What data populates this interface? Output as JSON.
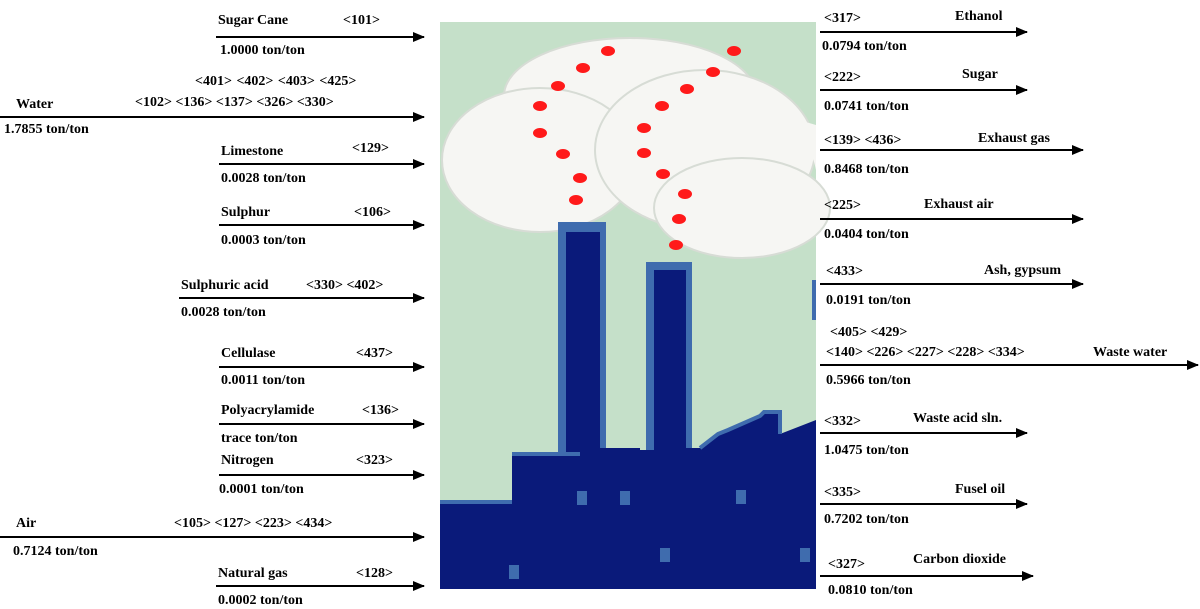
{
  "inputs": [
    {
      "id": "sugarcane",
      "name": "Sugar Cane",
      "streams": "<101>",
      "streams2": "",
      "rate": "1.0000  ton/ton"
    },
    {
      "id": "water",
      "name": "Water",
      "streams": "<102>   <136> <137> <326>  <330>",
      "streams2": "<401> <402> <403>  <425>",
      "rate": "1.7855  ton/ton"
    },
    {
      "id": "limestone",
      "name": "Limestone",
      "streams": "<129>",
      "streams2": "",
      "rate": "0.0028  ton/ton"
    },
    {
      "id": "sulphur",
      "name": "Sulphur",
      "streams": "<106>",
      "streams2": "",
      "rate": "0.0003   ton/ton"
    },
    {
      "id": "sulphuric",
      "name": "Sulphuric acid",
      "streams": "<330>  <402>",
      "streams2": "",
      "rate": "0.0028  ton/ton"
    },
    {
      "id": "cellulase",
      "name": "Cellulase",
      "streams": "<437>",
      "streams2": "",
      "rate": "0.0011 ton/ton"
    },
    {
      "id": "polyacrylamide",
      "name": "Polyacrylamide",
      "streams": "<136>",
      "streams2": "",
      "rate": "trace   ton/ton"
    },
    {
      "id": "nitrogen",
      "name": "Nitrogen",
      "streams": "<323>",
      "streams2": "",
      "rate": "0.0001 ton/ton"
    },
    {
      "id": "air",
      "name": "Air",
      "streams": "<105>    <127>    <223>    <434>",
      "streams2": "",
      "rate": "0.7124  ton/ton"
    },
    {
      "id": "naturalgas",
      "name": "Natural gas",
      "streams": "<128>",
      "streams2": "",
      "rate": "0.0002  ton/ton"
    }
  ],
  "outputs": [
    {
      "id": "ethanol",
      "name": "Ethanol",
      "streams": "<317>",
      "streams2": "",
      "rate": "0.0794 ton/ton"
    },
    {
      "id": "sugar",
      "name": "Sugar",
      "streams": "<222>",
      "streams2": "",
      "rate": "0.0741 ton/ton"
    },
    {
      "id": "exhaustgas",
      "name": "Exhaust gas",
      "streams": "<139>  <436>",
      "streams2": "",
      "rate": "0.8468 ton/ton"
    },
    {
      "id": "exhaustair",
      "name": "Exhaust air",
      "streams": "<225>",
      "streams2": "",
      "rate": "0.0404 ton/ton"
    },
    {
      "id": "ash",
      "name": "Ash, gypsum",
      "streams": "<433>",
      "streams2": "",
      "rate": "0.0191 ton/ton"
    },
    {
      "id": "wastewater",
      "name": "Waste water",
      "streams": "<140>    <226>  <227>  <228> <334>",
      "streams2": "<405>    <429>",
      "rate": "0.5966  ton/ton"
    },
    {
      "id": "wasteacid",
      "name": "Waste acid sln.",
      "streams": "<332>",
      "streams2": "",
      "rate": "1.0475  ton/ton"
    },
    {
      "id": "fuseloil",
      "name": "Fusel oil",
      "streams": "<335>",
      "streams2": "",
      "rate": "0.7202  ton/ton"
    },
    {
      "id": "co2",
      "name": "Carbon dioxide",
      "streams": "<327>",
      "streams2": "",
      "rate": "0.0810  ton/ton"
    }
  ],
  "colors": {
    "background_green": "#c5e0c9",
    "factory_navy": "#0a1a7a",
    "factory_edge": "#3f6cae",
    "smoke_white": "#f6f6f3",
    "dot_red": "#ff1a1a",
    "arrow": "#000000"
  }
}
